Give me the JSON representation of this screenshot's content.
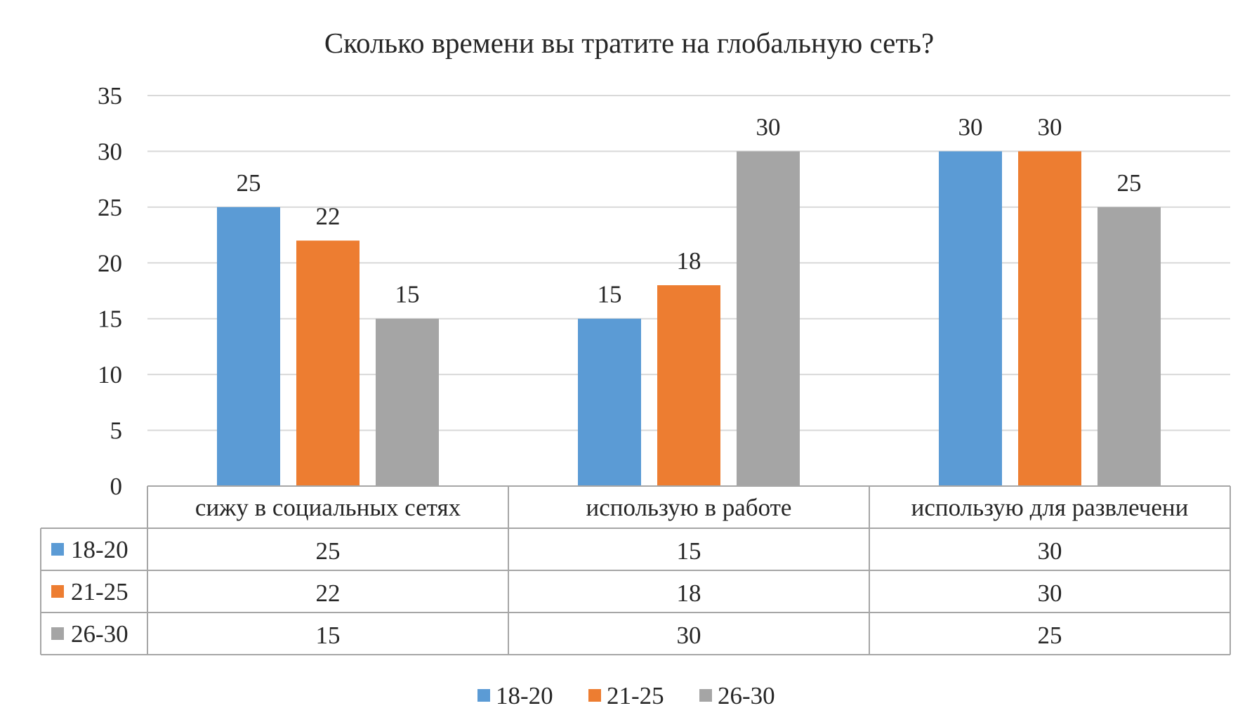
{
  "chart_data": {
    "type": "bar",
    "title": "Сколько времени вы тратите на глобальную сеть?",
    "categories": [
      "сижу в социальных  сетях",
      "использую в работе",
      "использую для развлечени"
    ],
    "series": [
      {
        "name": "18-20",
        "values": [
          25,
          15,
          30
        ],
        "color": "#5b9bd5"
      },
      {
        "name": "21-25",
        "values": [
          22,
          18,
          30
        ],
        "color": "#ed7d31"
      },
      {
        "name": "26-30",
        "values": [
          15,
          30,
          25
        ],
        "color": "#a5a5a5"
      }
    ],
    "ylim": [
      0,
      35
    ],
    "yticks": [
      0,
      5,
      10,
      15,
      20,
      25,
      30,
      35
    ],
    "grid": true,
    "data_labels": true,
    "data_table": true,
    "legend_position": "bottom"
  }
}
